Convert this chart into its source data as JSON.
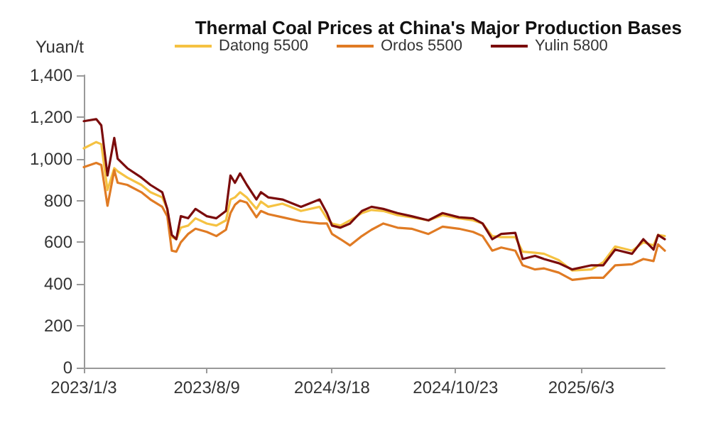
{
  "chart_data": {
    "type": "line",
    "title": "Thermal Coal Prices at China's Major Production Bases",
    "ylabel": "Yuan/t",
    "x": [
      "2023-01-03",
      "2023-01-25",
      "2023-02-03",
      "2023-02-14",
      "2023-02-26",
      "2023-03-04",
      "2023-03-21",
      "2023-04-15",
      "2023-05-01",
      "2023-05-22",
      "2023-05-31",
      "2023-06-08",
      "2023-06-16",
      "2023-06-24",
      "2023-07-07",
      "2023-07-20",
      "2023-08-09",
      "2023-08-26",
      "2023-09-12",
      "2023-09-20",
      "2023-09-28",
      "2023-10-07",
      "2023-10-19",
      "2023-11-05",
      "2023-11-13",
      "2023-11-26",
      "2023-12-21",
      "2024-01-23",
      "2024-02-25",
      "2024-03-09",
      "2024-03-18",
      "2024-04-02",
      "2024-04-19",
      "2024-05-10",
      "2024-05-27",
      "2024-06-17",
      "2024-07-12",
      "2024-08-06",
      "2024-09-05",
      "2024-09-30",
      "2024-10-29",
      "2024-11-23",
      "2024-12-10",
      "2024-12-27",
      "2025-01-12",
      "2025-02-06",
      "2025-02-19",
      "2025-03-13",
      "2025-03-29",
      "2025-04-24",
      "2025-05-18",
      "2025-06-21",
      "2025-07-12",
      "2025-08-02",
      "2025-09-01",
      "2025-09-21",
      "2025-10-09",
      "2025-10-17",
      "2025-10-29"
    ],
    "series": [
      {
        "name": "Datong 5500",
        "color": "#f5c242",
        "values": [
          1050,
          1080,
          1070,
          850,
          955,
          940,
          910,
          875,
          840,
          815,
          760,
          625,
          615,
          670,
          680,
          715,
          690,
          680,
          705,
          805,
          815,
          840,
          815,
          760,
          795,
          770,
          785,
          750,
          770,
          715,
          690,
          680,
          705,
          740,
          755,
          750,
          730,
          720,
          705,
          730,
          715,
          705,
          690,
          630,
          625,
          625,
          555,
          550,
          545,
          515,
          465,
          470,
          505,
          580,
          560,
          600,
          585,
          635,
          630
        ]
      },
      {
        "name": "Ordos 5500",
        "color": "#e07b24",
        "values": [
          960,
          980,
          970,
          775,
          945,
          885,
          875,
          840,
          805,
          770,
          725,
          560,
          555,
          600,
          640,
          665,
          650,
          630,
          660,
          740,
          780,
          800,
          790,
          720,
          750,
          735,
          720,
          700,
          690,
          690,
          640,
          615,
          585,
          630,
          660,
          690,
          670,
          665,
          640,
          675,
          665,
          650,
          630,
          560,
          575,
          560,
          490,
          470,
          475,
          455,
          420,
          430,
          430,
          490,
          495,
          520,
          510,
          590,
          560
        ]
      },
      {
        "name": "Yulin 5800",
        "color": "#7b0c0c",
        "values": [
          1180,
          1190,
          1160,
          920,
          1100,
          1000,
          955,
          910,
          875,
          840,
          760,
          635,
          615,
          725,
          715,
          760,
          725,
          715,
          750,
          920,
          885,
          930,
          875,
          805,
          840,
          815,
          805,
          770,
          805,
          740,
          680,
          670,
          690,
          750,
          770,
          760,
          740,
          725,
          705,
          740,
          720,
          715,
          690,
          615,
          640,
          645,
          520,
          535,
          520,
          500,
          470,
          490,
          490,
          565,
          545,
          615,
          565,
          635,
          615
        ]
      }
    ],
    "xlim": [
      "2023-01-03",
      "2025-10-29"
    ],
    "xticks": [
      {
        "value": "2023-01-03",
        "label": "2023/1/3"
      },
      {
        "value": "2023-08-09",
        "label": "2023/8/9"
      },
      {
        "value": "2024-03-18",
        "label": "2024/3/18"
      },
      {
        "value": "2024-10-23",
        "label": "2024/10/23"
      },
      {
        "value": "2025-06-03",
        "label": "2025/6/3"
      }
    ],
    "ylim": [
      0,
      1400
    ],
    "yticks": [
      0,
      200,
      400,
      600,
      800,
      {
        "value": 1000,
        "label": "1,000"
      },
      {
        "value": 1200,
        "label": "1,200"
      },
      {
        "value": 1400,
        "label": "1,400"
      }
    ],
    "grid": false,
    "legend": "top",
    "marker": "none",
    "line_style": "solid"
  }
}
